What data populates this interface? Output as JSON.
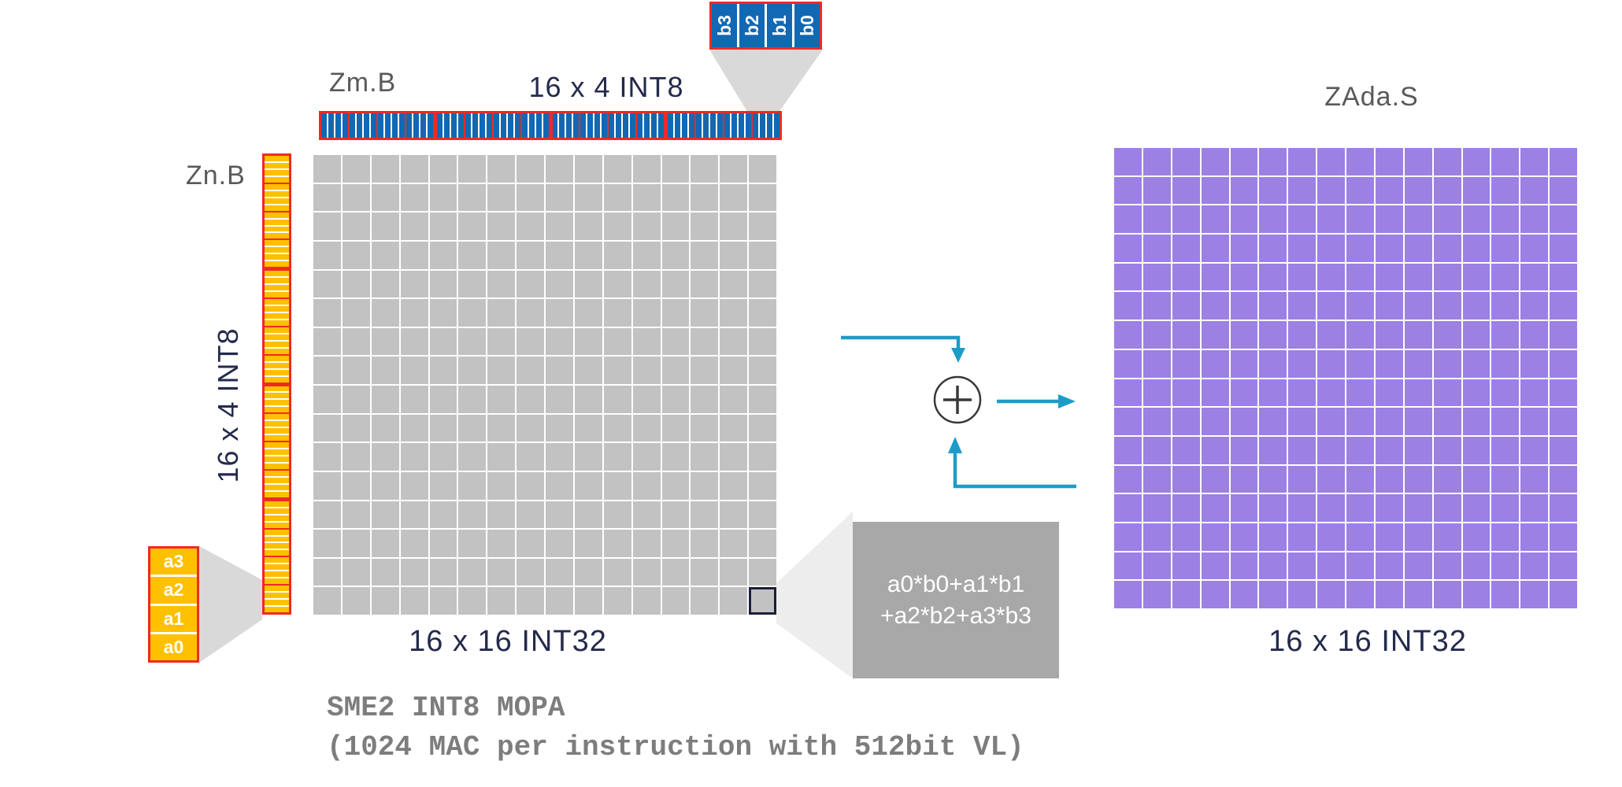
{
  "diagram": {
    "zm": {
      "label": "Zm.B",
      "sublabel": "16 x 4 INT8",
      "quarters": 4,
      "groups": 16,
      "cells_per_group": 4
    },
    "zn": {
      "label": "Zn.B",
      "sublabel": "16 x 4 INT8",
      "quarters": 4,
      "groups": 16,
      "cells_per_group": 4
    },
    "zm_callout": {
      "cells": [
        "b3",
        "b2",
        "b1",
        "b0"
      ]
    },
    "zn_callout": {
      "cells": [
        "a3",
        "a2",
        "a1",
        "a0"
      ]
    },
    "mopa_grid": {
      "rows": 16,
      "cols": 16,
      "label": "16 x 16 INT32"
    },
    "za_grid": {
      "title": "ZAda.S",
      "rows": 16,
      "cols": 16,
      "label": "16 x 16 INT32"
    },
    "formula": {
      "line1": "a0*b0+a1*b1",
      "line2": "+a2*b2+a3*b3"
    },
    "caption": {
      "line1": "SME2 INT8 MOPA",
      "line2": "(1024 MAC per instruction with 512bit VL)"
    }
  },
  "colors": {
    "red_border": "#ee2a24",
    "blue_cell": "#1268b2",
    "orange_cell": "#ffc000",
    "gray_cell": "#c2c2c3",
    "purple_cell": "#9c80e4",
    "navy_text": "#242a4c",
    "gray_label": "#595959",
    "caption_gray": "#7d7d7d",
    "formula_bg": "#a8a8a8",
    "funnel_gray": "#d9d9d9",
    "funnel_light": "#ededed",
    "arrow_teal": "#1e9cc8",
    "highlight_border": "#1b1f3b",
    "plus_stroke": "#383838"
  }
}
